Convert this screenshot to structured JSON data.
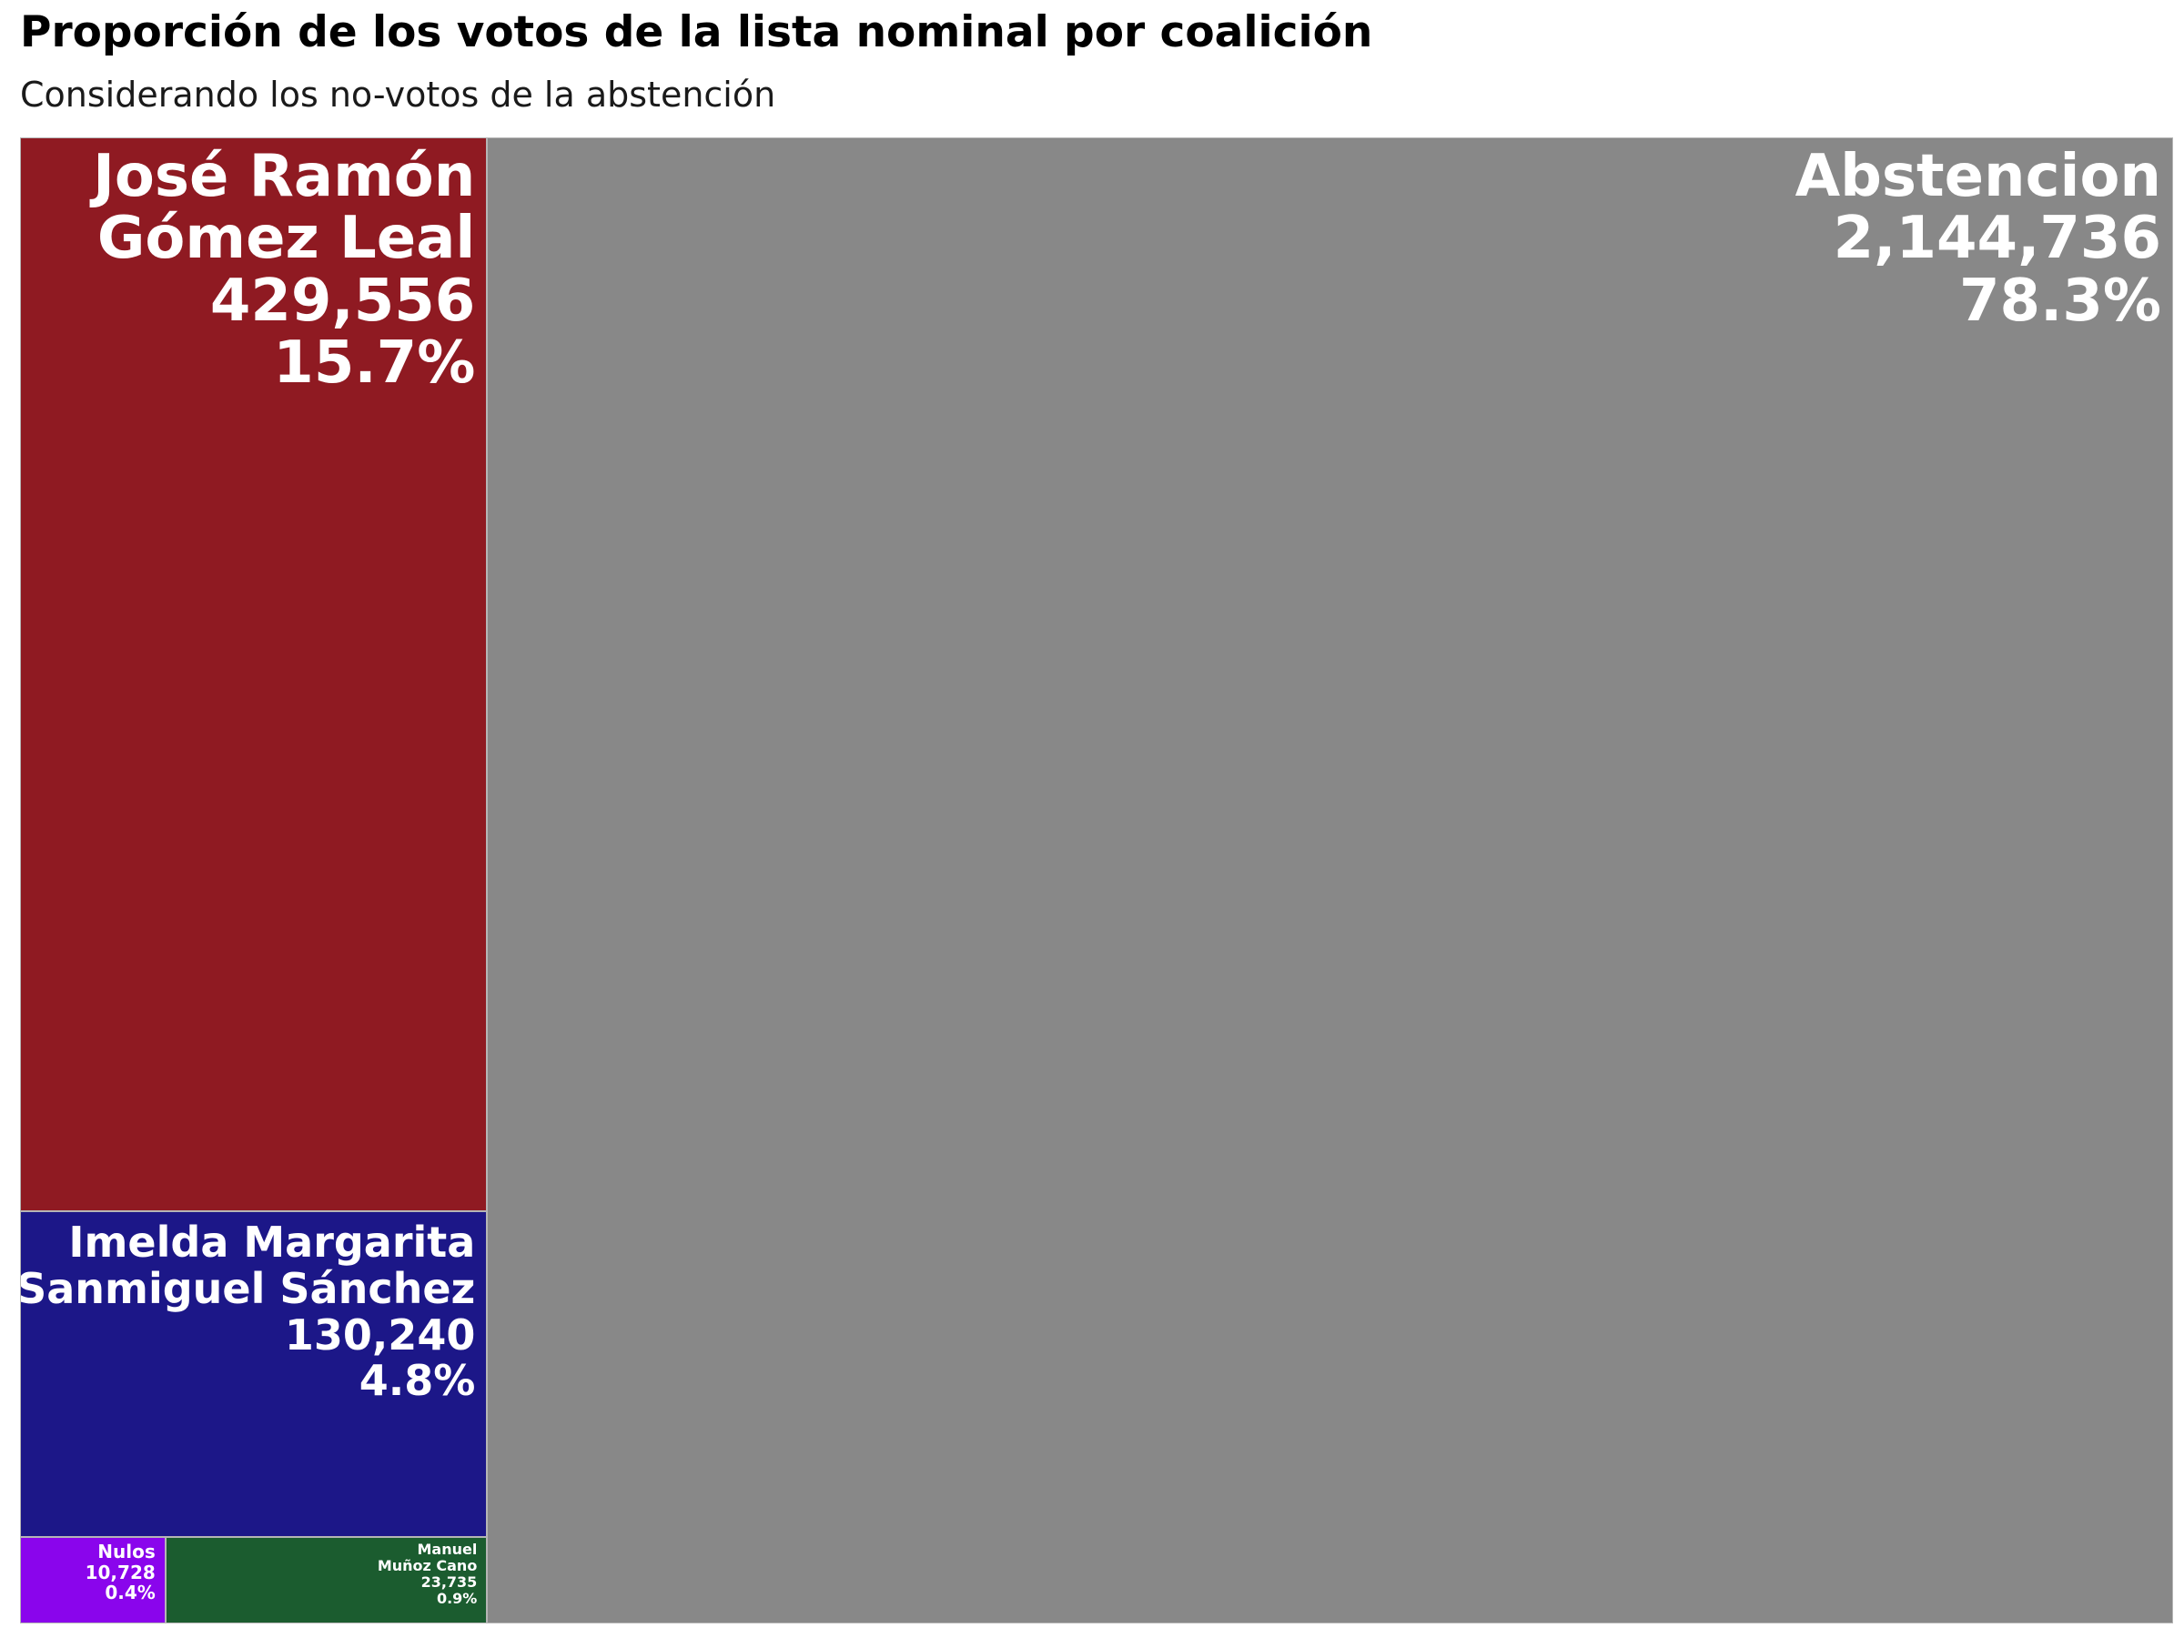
{
  "chart_data": {
    "type": "treemap",
    "title": "Proporción de los votos de la lista nominal por coalición",
    "subtitle": "Considerando los no-votos de la abstención",
    "nodes": [
      {
        "name_lines": [
          "Abstencion"
        ],
        "value": 2144736,
        "value_label": "2,144,736",
        "share_label": "78.3%",
        "color": "#888888"
      },
      {
        "name_lines": [
          "José Ramón",
          "Gómez Leal"
        ],
        "value": 429556,
        "value_label": "429,556",
        "share_label": "15.7%",
        "color": "#8f1a22"
      },
      {
        "name_lines": [
          "Imelda Margarita",
          "Sanmiguel Sánchez"
        ],
        "value": 130240,
        "value_label": "130,240",
        "share_label": "4.8%",
        "color": "#1c1788"
      },
      {
        "name_lines": [
          "Manuel",
          "Muñoz Cano"
        ],
        "value": 23735,
        "value_label": "23,735",
        "share_label": "0.9%",
        "color": "#1b5c2f"
      },
      {
        "name_lines": [
          "Nulos"
        ],
        "value": 10728,
        "value_label": "10,728",
        "share_label": "0.4%",
        "color": "#8a05ec"
      }
    ]
  }
}
